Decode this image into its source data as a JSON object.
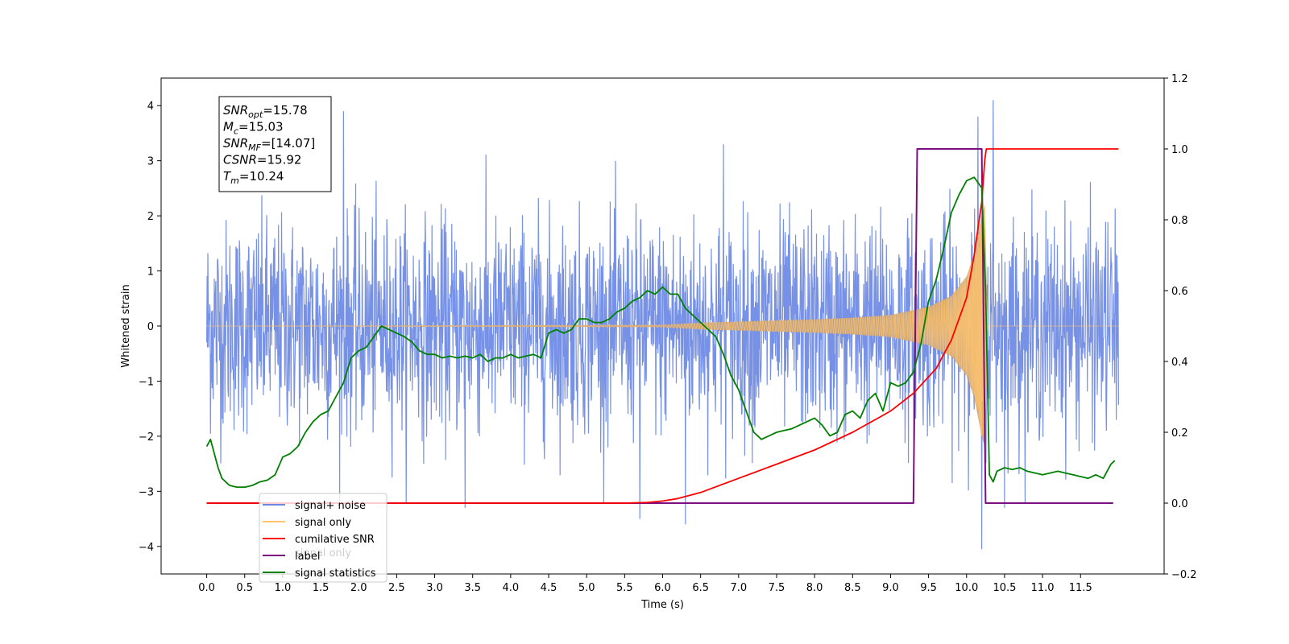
{
  "chart_data": {
    "type": "line",
    "xlabel": "Time (s)",
    "ylabel": "Whitened strain",
    "xlim": [
      -0.6,
      12.6
    ],
    "ylim": [
      -4.5,
      4.5
    ],
    "y2lim": [
      -0.2,
      1.2
    ],
    "x_ticks": [
      0.0,
      0.5,
      1.0,
      1.5,
      2.0,
      2.5,
      3.0,
      3.5,
      4.0,
      4.5,
      5.0,
      5.5,
      6.0,
      6.5,
      7.0,
      7.5,
      8.0,
      8.5,
      9.0,
      9.5,
      10.0,
      10.5,
      11.0,
      11.5
    ],
    "x_tick_labels": [
      "0.0",
      "0.5",
      "1.0",
      "1.5",
      "2.0",
      "2.5",
      "3.0",
      "3.5",
      "4.0",
      "4.5",
      "5.0",
      "5.5",
      "6.0",
      "6.5",
      "7.0",
      "7.5",
      "8.0",
      "8.5",
      "9.0",
      "9.5",
      "10.0",
      "10.5",
      "11.0",
      "11.5"
    ],
    "y_ticks": [
      -4,
      -3,
      -2,
      -1,
      0,
      1,
      2,
      3,
      4
    ],
    "y_tick_labels": [
      "−4",
      "−3",
      "−2",
      "−1",
      "0",
      "1",
      "2",
      "3",
      "4"
    ],
    "y2_ticks": [
      -0.2,
      0.0,
      0.2,
      0.4,
      0.6,
      0.8,
      1.0,
      1.2
    ],
    "y2_tick_labels": [
      "−0.2",
      "0.0",
      "0.2",
      "0.4",
      "0.6",
      "0.8",
      "1.0",
      "1.2"
    ],
    "legend": {
      "placement": "lower-left",
      "entries": [
        {
          "label": "signal+ noise",
          "color": "#6a88e3"
        },
        {
          "label": "signal only",
          "color": "#ffc36a"
        },
        {
          "label": "cumilative SNR",
          "color": "#ff0000"
        },
        {
          "label": "label",
          "color": "#7b0f7f"
        },
        {
          "label": "signal statistics",
          "color": "#008000"
        }
      ],
      "hidden_label": "signal only"
    },
    "annotation": {
      "placement": "top-left",
      "lines": [
        {
          "symbol": "SNR",
          "sub": "opt",
          "value": "=15.78"
        },
        {
          "symbol": "M",
          "sub": "c",
          "value": "=15.03"
        },
        {
          "symbol": "SNR",
          "sub": "MF",
          "value": "=[14.07]"
        },
        {
          "symbol": "CSNR",
          "sub": "",
          "value": "=15.92"
        },
        {
          "symbol": "T",
          "sub": "m",
          "value": "=10.24"
        }
      ]
    },
    "series": [
      {
        "name": "signal+ noise",
        "axis": "left",
        "color": "#6a88e3",
        "noise_std": 0.95,
        "x_range": [
          0.0,
          12.0
        ],
        "peaks_max": [
          [
            1.8,
            3.9
          ],
          [
            6.8,
            3.3
          ],
          [
            10.15,
            3.8
          ],
          [
            10.35,
            4.1
          ]
        ],
        "peaks_min": [
          [
            3.4,
            -3.3
          ],
          [
            5.7,
            -3.5
          ],
          [
            6.3,
            -3.6
          ],
          [
            10.2,
            -4.05
          ],
          [
            10.5,
            -3.3
          ]
        ]
      },
      {
        "name": "signal only",
        "axis": "left",
        "color": "#ffc36a",
        "fill_color": "#c9a37a",
        "envelope": [
          [
            6.0,
            0.02
          ],
          [
            6.5,
            0.06
          ],
          [
            7.0,
            0.08
          ],
          [
            7.5,
            0.1
          ],
          [
            8.0,
            0.12
          ],
          [
            8.5,
            0.15
          ],
          [
            9.0,
            0.2
          ],
          [
            9.5,
            0.35
          ],
          [
            9.8,
            0.55
          ],
          [
            10.0,
            0.9
          ],
          [
            10.1,
            1.3
          ],
          [
            10.2,
            2.0
          ],
          [
            10.24,
            2.2
          ],
          [
            10.28,
            0.0
          ]
        ]
      },
      {
        "name": "cumilative SNR",
        "axis": "right",
        "color": "#ff0000",
        "x": [
          0.0,
          5.5,
          5.8,
          6.0,
          6.2,
          6.5,
          7.0,
          7.5,
          8.0,
          8.5,
          9.0,
          9.3,
          9.6,
          9.8,
          10.0,
          10.1,
          10.2,
          10.24,
          10.26,
          12.0
        ],
        "y": [
          0.0,
          0.0,
          0.002,
          0.006,
          0.013,
          0.03,
          0.07,
          0.11,
          0.15,
          0.2,
          0.26,
          0.31,
          0.38,
          0.46,
          0.58,
          0.7,
          0.85,
          0.97,
          1.0,
          1.0
        ]
      },
      {
        "name": "label",
        "axis": "right",
        "color": "#7b0f7f",
        "x": [
          0.0,
          9.3,
          9.35,
          10.2,
          10.25,
          11.93
        ],
        "y": [
          0.0,
          0.0,
          1.0,
          1.0,
          0.0,
          0.0
        ]
      },
      {
        "name": "signal statistics",
        "axis": "right",
        "color": "#008000",
        "x": [
          0.0,
          0.05,
          0.1,
          0.15,
          0.2,
          0.3,
          0.4,
          0.5,
          0.6,
          0.7,
          0.8,
          0.9,
          1.0,
          1.1,
          1.2,
          1.3,
          1.4,
          1.5,
          1.6,
          1.7,
          1.8,
          1.9,
          2.0,
          2.1,
          2.2,
          2.3,
          2.4,
          2.5,
          2.6,
          2.7,
          2.8,
          2.9,
          3.0,
          3.1,
          3.2,
          3.3,
          3.4,
          3.5,
          3.6,
          3.7,
          3.8,
          3.9,
          4.0,
          4.1,
          4.2,
          4.3,
          4.4,
          4.5,
          4.6,
          4.7,
          4.8,
          4.9,
          5.0,
          5.1,
          5.2,
          5.3,
          5.4,
          5.5,
          5.6,
          5.7,
          5.8,
          5.9,
          6.0,
          6.1,
          6.2,
          6.3,
          6.4,
          6.5,
          6.6,
          6.7,
          6.8,
          6.9,
          7.0,
          7.1,
          7.2,
          7.3,
          7.4,
          7.5,
          7.6,
          7.7,
          7.8,
          7.9,
          8.0,
          8.1,
          8.2,
          8.3,
          8.4,
          8.5,
          8.6,
          8.7,
          8.8,
          8.9,
          9.0,
          9.1,
          9.2,
          9.3,
          9.4,
          9.5,
          9.6,
          9.7,
          9.8,
          9.9,
          10.0,
          10.1,
          10.2,
          10.25,
          10.3,
          10.35,
          10.4,
          10.5,
          10.6,
          10.7,
          10.8,
          10.9,
          11.0,
          11.1,
          11.2,
          11.3,
          11.4,
          11.5,
          11.6,
          11.7,
          11.8,
          11.9,
          11.95
        ],
        "y": [
          0.16,
          0.18,
          0.14,
          0.1,
          0.07,
          0.05,
          0.045,
          0.045,
          0.05,
          0.06,
          0.065,
          0.08,
          0.13,
          0.14,
          0.16,
          0.2,
          0.23,
          0.25,
          0.26,
          0.3,
          0.34,
          0.41,
          0.43,
          0.44,
          0.47,
          0.5,
          0.49,
          0.48,
          0.47,
          0.455,
          0.43,
          0.42,
          0.42,
          0.41,
          0.415,
          0.41,
          0.415,
          0.41,
          0.42,
          0.4,
          0.41,
          0.41,
          0.42,
          0.41,
          0.415,
          0.42,
          0.41,
          0.48,
          0.49,
          0.48,
          0.49,
          0.52,
          0.52,
          0.51,
          0.51,
          0.52,
          0.54,
          0.55,
          0.57,
          0.58,
          0.6,
          0.59,
          0.61,
          0.59,
          0.59,
          0.55,
          0.53,
          0.51,
          0.49,
          0.47,
          0.42,
          0.36,
          0.32,
          0.26,
          0.2,
          0.18,
          0.19,
          0.2,
          0.205,
          0.21,
          0.22,
          0.23,
          0.24,
          0.22,
          0.19,
          0.2,
          0.25,
          0.26,
          0.24,
          0.29,
          0.31,
          0.26,
          0.34,
          0.33,
          0.34,
          0.37,
          0.45,
          0.57,
          0.63,
          0.72,
          0.82,
          0.87,
          0.91,
          0.92,
          0.89,
          0.6,
          0.08,
          0.06,
          0.09,
          0.1,
          0.095,
          0.1,
          0.09,
          0.085,
          0.08,
          0.085,
          0.09,
          0.085,
          0.08,
          0.075,
          0.07,
          0.08,
          0.07,
          0.11,
          0.12
        ]
      }
    ]
  }
}
